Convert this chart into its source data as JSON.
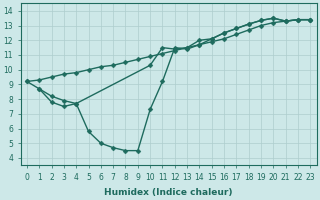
{
  "lines": [
    {
      "x": [
        0,
        1,
        2,
        3,
        4,
        5,
        6,
        7,
        8,
        9,
        10,
        11,
        12,
        13,
        14,
        15,
        16,
        17,
        18,
        19,
        20,
        21,
        22,
        23
      ],
      "y": [
        9.2,
        9.3,
        9.5,
        9.7,
        9.8,
        10.0,
        10.2,
        10.3,
        10.5,
        10.7,
        10.9,
        11.1,
        11.3,
        11.5,
        11.7,
        11.9,
        12.1,
        12.4,
        12.7,
        13.0,
        13.2,
        13.3,
        13.4,
        13.4
      ],
      "color": "#2e7d6e",
      "marker": "D",
      "markersize": 2.5,
      "linewidth": 1.0
    },
    {
      "x": [
        0,
        1,
        2,
        3,
        4,
        10,
        11,
        12,
        13,
        14,
        15,
        16,
        17,
        18,
        19,
        20,
        21,
        22,
        23
      ],
      "y": [
        9.2,
        8.7,
        8.2,
        7.9,
        7.7,
        10.3,
        11.5,
        11.4,
        11.5,
        12.0,
        12.1,
        12.5,
        12.8,
        13.1,
        13.35,
        13.5,
        13.3,
        13.4,
        13.4
      ],
      "color": "#2e7d6e",
      "marker": "D",
      "markersize": 2.5,
      "linewidth": 1.0
    },
    {
      "x": [
        1,
        2,
        3,
        4,
        5,
        6,
        7,
        8,
        9,
        10,
        11,
        12,
        13,
        14,
        15,
        16,
        17,
        18,
        19,
        20,
        21,
        22,
        23
      ],
      "y": [
        8.7,
        7.8,
        7.5,
        7.7,
        5.8,
        5.0,
        4.7,
        4.5,
        4.5,
        7.3,
        9.2,
        11.5,
        11.4,
        11.7,
        12.1,
        12.5,
        12.8,
        13.1,
        13.35,
        13.5,
        13.3,
        13.4,
        13.4
      ],
      "color": "#2e7d6e",
      "marker": "D",
      "markersize": 2.5,
      "linewidth": 1.0
    }
  ],
  "xlabel": "Humidex (Indice chaleur)",
  "xlim": [
    -0.5,
    23.5
  ],
  "ylim": [
    3.5,
    14.5
  ],
  "xticks": [
    0,
    1,
    2,
    3,
    4,
    5,
    6,
    7,
    8,
    9,
    10,
    11,
    12,
    13,
    14,
    15,
    16,
    17,
    18,
    19,
    20,
    21,
    22,
    23
  ],
  "yticks": [
    4,
    5,
    6,
    7,
    8,
    9,
    10,
    11,
    12,
    13,
    14
  ],
  "xlabel_fontsize": 6.5,
  "tick_fontsize": 5.5,
  "background_color": "#cde8e8",
  "grid_color": "#aecece",
  "line_color": "#1e6b5e"
}
